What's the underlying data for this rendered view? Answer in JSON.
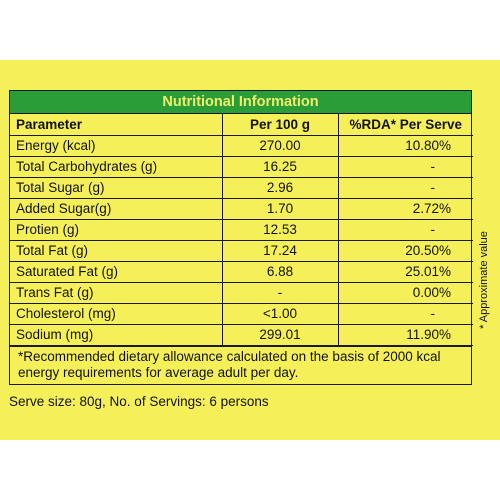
{
  "title": "Nutritional Information",
  "headers": [
    "Parameter",
    "Per 100 g",
    "%RDA* Per Serve"
  ],
  "rows": [
    {
      "parameter": "Energy (kcal)",
      "per100": "270.00",
      "rda": "10.80%"
    },
    {
      "parameter": "Total Carbohydrates (g)",
      "per100": "16.25",
      "rda": "-"
    },
    {
      "parameter": "Total Sugar (g)",
      "per100": "2.96",
      "rda": "-"
    },
    {
      "parameter": "Added Sugar(g)",
      "per100": "1.70",
      "rda": "2.72%"
    },
    {
      "parameter": "Protien (g)",
      "per100": "12.53",
      "rda": "-"
    },
    {
      "parameter": "Total Fat (g)",
      "per100": "17.24",
      "rda": "20.50%"
    },
    {
      "parameter": "Saturated Fat (g)",
      "per100": "6.88",
      "rda": "25.01%"
    },
    {
      "parameter": "Trans Fat (g)",
      "per100": "-",
      "rda": "0.00%"
    },
    {
      "parameter": "Cholesterol (mg)",
      "per100": "<1.00",
      "rda": "-"
    },
    {
      "parameter": "Sodium (mg)",
      "per100": "299.01",
      "rda": "11.90%"
    }
  ],
  "footnote": "*Recommended dietary allowance calculated on the basis of 2000 kcal energy requirements for average adult per day.",
  "serve_size": "Serve size: 80g, No. of Servings: 6 persons",
  "side_note": "* Approximate value",
  "colors": {
    "panel": "#f5f05a",
    "title_bar": "#2a9c38",
    "title_text": "#f2f06a"
  }
}
